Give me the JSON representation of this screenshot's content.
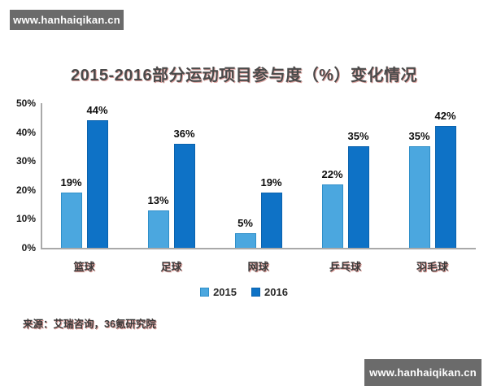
{
  "watermark": {
    "text": "www.hanhaiqikan.cn",
    "background": "#6b6b6b"
  },
  "source_note": "来源：艾瑞咨询，36氪研究院",
  "chart_data": {
    "type": "bar",
    "title": "2015-2016部分运动项目参与度（%）变化情况",
    "categories": [
      "篮球",
      "足球",
      "网球",
      "乒乓球",
      "羽毛球"
    ],
    "series": [
      {
        "name": "2015",
        "color": "#4BA7DF",
        "border": "#2F8FC9",
        "values": [
          19,
          13,
          5,
          22,
          35
        ]
      },
      {
        "name": "2016",
        "color": "#0E72C6",
        "border": "#0A62AD",
        "values": [
          44,
          36,
          19,
          35,
          42
        ]
      }
    ],
    "value_suffix": "%",
    "xlabel": "",
    "ylabel": "",
    "ylim": [
      0,
      50
    ],
    "yticks": [
      "0%",
      "10%",
      "20%",
      "30%",
      "40%",
      "50%"
    ],
    "grid": false,
    "legend_position": "bottom",
    "axis_color": "#a9a9a9"
  }
}
